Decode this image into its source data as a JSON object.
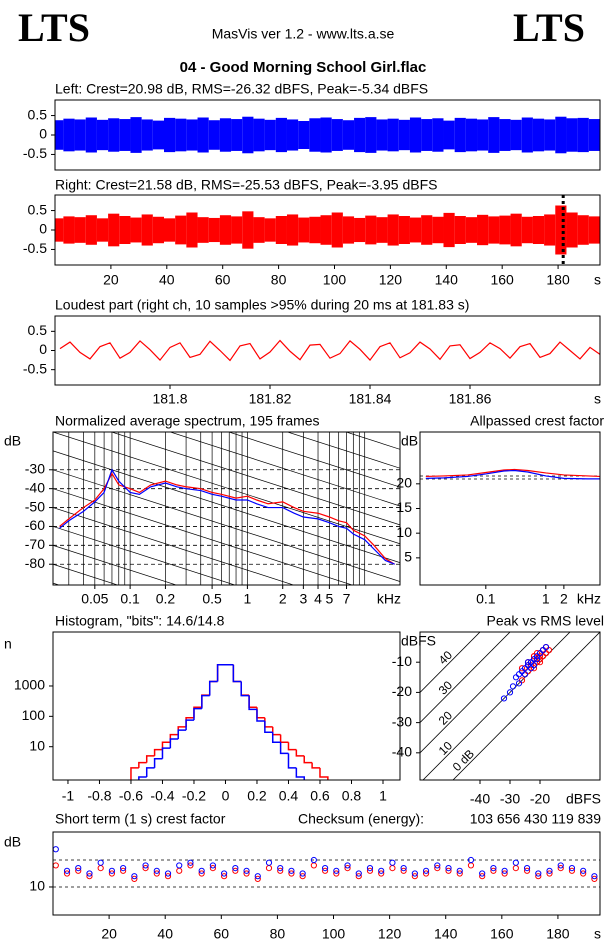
{
  "header": {
    "logo_left": "LTS",
    "logo_right": "LTS",
    "app": "MasVis ver 1.2 - www.lts.a.se",
    "file": "04 - Good Morning School Girl.flac"
  },
  "chart_data": [
    {
      "type": "waveform",
      "title": "Left: Crest=20.98 dB, RMS=-26.32 dBFS, Peak=-5.34 dBFS",
      "color": "#0000ff",
      "x": [
        1,
        5,
        9,
        13,
        17,
        21,
        25,
        29,
        33,
        37,
        41,
        45,
        49,
        53,
        57,
        61,
        65,
        69,
        73,
        77,
        81,
        85,
        89,
        93,
        97,
        101,
        105,
        109,
        113,
        117,
        121,
        125,
        129,
        133,
        137,
        141,
        145,
        149,
        153,
        157,
        161,
        165,
        169,
        173,
        177,
        181,
        185,
        189,
        193
      ],
      "values": [
        0.38,
        0.42,
        0.4,
        0.45,
        0.39,
        0.43,
        0.41,
        0.46,
        0.4,
        0.37,
        0.44,
        0.42,
        0.4,
        0.45,
        0.38,
        0.43,
        0.41,
        0.47,
        0.42,
        0.39,
        0.44,
        0.4,
        0.36,
        0.43,
        0.45,
        0.41,
        0.38,
        0.44,
        0.46,
        0.4,
        0.42,
        0.39,
        0.45,
        0.41,
        0.43,
        0.37,
        0.44,
        0.42,
        0.4,
        0.46,
        0.41,
        0.39,
        0.45,
        0.42,
        0.4,
        0.47,
        0.43,
        0.44,
        0.41
      ],
      "xlim": [
        0,
        195
      ],
      "ylim": [
        -0.9,
        0.9
      ],
      "yticks": [
        0.5,
        0,
        -0.5
      ]
    },
    {
      "type": "waveform",
      "title": "Right: Crest=21.58 dB, RMS=-25.53 dBFS, Peak=-3.95 dBFS",
      "color": "#ff0000",
      "x": [
        1,
        5,
        9,
        13,
        17,
        21,
        25,
        29,
        33,
        37,
        41,
        45,
        49,
        53,
        57,
        61,
        65,
        69,
        73,
        77,
        81,
        85,
        89,
        93,
        97,
        101,
        105,
        109,
        113,
        117,
        121,
        125,
        129,
        133,
        137,
        141,
        145,
        149,
        153,
        157,
        161,
        165,
        169,
        173,
        177,
        181,
        185,
        189,
        193
      ],
      "values": [
        0.3,
        0.35,
        0.33,
        0.38,
        0.3,
        0.42,
        0.36,
        0.32,
        0.4,
        0.34,
        0.3,
        0.37,
        0.45,
        0.33,
        0.31,
        0.38,
        0.35,
        0.48,
        0.33,
        0.3,
        0.36,
        0.4,
        0.32,
        0.34,
        0.38,
        0.45,
        0.35,
        0.31,
        0.37,
        0.33,
        0.4,
        0.36,
        0.32,
        0.38,
        0.34,
        0.44,
        0.36,
        0.33,
        0.39,
        0.35,
        0.37,
        0.42,
        0.34,
        0.36,
        0.4,
        0.63,
        0.45,
        0.38,
        0.35
      ],
      "marker": 181.83,
      "xlim": [
        0,
        195
      ],
      "ylim": [
        -0.9,
        0.9
      ],
      "yticks": [
        0.5,
        0,
        -0.5
      ],
      "xticks": [
        20,
        40,
        60,
        80,
        100,
        120,
        140,
        160,
        180
      ],
      "x_unit": "s"
    },
    {
      "type": "line",
      "title": "Loudest part (right ch, 10 samples >95% during 20 ms at 181.83 s)",
      "color": "#ff0000",
      "x": [
        181.778,
        181.78,
        181.782,
        181.784,
        181.786,
        181.788,
        181.79,
        181.792,
        181.794,
        181.796,
        181.798,
        181.8,
        181.802,
        181.804,
        181.806,
        181.808,
        181.81,
        181.812,
        181.814,
        181.816,
        181.818,
        181.82,
        181.822,
        181.824,
        181.826,
        181.828,
        181.83,
        181.832,
        181.834,
        181.836,
        181.838,
        181.84,
        181.842,
        181.844,
        181.846,
        181.848,
        181.85,
        181.852,
        181.854,
        181.856,
        181.858,
        181.86,
        181.862,
        181.864,
        181.866,
        181.868,
        181.87,
        181.872,
        181.874,
        181.876,
        181.878,
        181.88,
        181.882,
        181.884,
        181.886
      ],
      "values": [
        0.05,
        0.22,
        -0.05,
        -0.22,
        0.1,
        0.2,
        -0.2,
        -0.05,
        0.25,
        0.02,
        -0.25,
        0.08,
        0.2,
        -0.18,
        -0.1,
        0.24,
        0,
        -0.26,
        0.12,
        0.18,
        -0.22,
        -0.04,
        0.26,
        -0.02,
        -0.24,
        0.14,
        0.16,
        -0.2,
        -0.08,
        0.25,
        0.03,
        -0.25,
        0.1,
        0.2,
        -0.19,
        -0.06,
        0.22,
        0.04,
        -0.23,
        0.12,
        0.15,
        -0.21,
        -0.05,
        0.2,
        0.05,
        -0.2,
        0.1,
        0.18,
        -0.18,
        -0.08,
        0.22,
        0,
        -0.22,
        0.08,
        -0.1
      ],
      "xlim": [
        181.777,
        181.886
      ],
      "ylim": [
        -0.9,
        0.9
      ],
      "yticks": [
        0.5,
        0,
        -0.5
      ],
      "xticks": [
        181.8,
        181.82,
        181.84,
        181.86
      ],
      "x_unit": "s"
    },
    {
      "type": "line",
      "title": "Normalized average spectrum, 195 frames",
      "xscale": "log",
      "grid": true,
      "x": [
        0.025,
        0.03,
        0.04,
        0.05,
        0.06,
        0.07,
        0.08,
        0.1,
        0.12,
        0.15,
        0.2,
        0.25,
        0.3,
        0.4,
        0.5,
        0.6,
        0.8,
        1,
        1.2,
        1.5,
        2,
        2.5,
        3,
        4,
        5,
        6,
        7,
        8,
        10,
        12,
        15,
        18
      ],
      "series": [
        {
          "color": "#ff0000",
          "values": [
            -60,
            -56,
            -50,
            -46,
            -40,
            -32,
            -38,
            -40,
            -42,
            -38,
            -36,
            -38,
            -39,
            -40,
            -42,
            -43,
            -45,
            -44,
            -46,
            -48,
            -47,
            -50,
            -52,
            -53,
            -55,
            -57,
            -58,
            -62,
            -65,
            -70,
            -77,
            -80
          ]
        },
        {
          "color": "#0000ff",
          "values": [
            -61,
            -57,
            -52,
            -47,
            -42,
            -30,
            -36,
            -42,
            -43,
            -39,
            -37,
            -39,
            -40,
            -41,
            -43,
            -44,
            -46,
            -46,
            -48,
            -50,
            -50,
            -53,
            -55,
            -56,
            -58,
            -60,
            -61,
            -64,
            -67,
            -72,
            -78,
            -80
          ]
        }
      ],
      "xlim": [
        0.022,
        20
      ],
      "ylim": [
        -91,
        -10
      ],
      "yticks": [
        -30,
        -40,
        -50,
        -60,
        -70,
        -80
      ],
      "xticks": [
        0.05,
        0.1,
        0.2,
        0.5,
        1,
        2,
        3,
        4,
        5,
        7
      ],
      "x_unit": "kHz",
      "y_unit": "dB"
    },
    {
      "type": "line",
      "title": "Allpassed crest factor",
      "xscale": "log",
      "x": [
        0.01,
        0.02,
        0.05,
        0.1,
        0.2,
        0.3,
        0.5,
        1,
        2,
        5,
        8
      ],
      "series": [
        {
          "color": "#ff0000",
          "values": [
            21.5,
            21.6,
            21.8,
            22.3,
            22.8,
            22.9,
            22.7,
            22.2,
            21.8,
            21.6,
            21.5
          ]
        },
        {
          "color": "#0000ff",
          "values": [
            21.1,
            21.2,
            21.5,
            22,
            22.6,
            22.7,
            22.4,
            21.6,
            21.1,
            21,
            21
          ]
        }
      ],
      "ref_lines": [
        20.98,
        21.58
      ],
      "xlim": [
        0.008,
        8
      ],
      "ylim": [
        -0.5,
        30.5
      ],
      "yticks": [
        20,
        15,
        10,
        5
      ],
      "xticks": [
        0.1,
        1,
        2
      ],
      "x_unit": "kHz",
      "y_unit": "dB"
    },
    {
      "type": "histogram",
      "title": "Histogram, \"bits\": 14.6/14.8",
      "yscale": "log",
      "bins": [
        -0.6,
        -0.55,
        -0.5,
        -0.45,
        -0.4,
        -0.35,
        -0.3,
        -0.25,
        -0.2,
        -0.15,
        -0.1,
        -0.05,
        0,
        0.05,
        0.1,
        0.15,
        0.2,
        0.25,
        0.3,
        0.35,
        0.4,
        0.45,
        0.5,
        0.55,
        0.6,
        0.65
      ],
      "series": [
        {
          "color": "#ff0000",
          "values": [
            2,
            3,
            5,
            8,
            14,
            25,
            45,
            90,
            200,
            500,
            1400,
            5000,
            5000,
            1400,
            500,
            200,
            90,
            45,
            25,
            14,
            8,
            5,
            3,
            2,
            1
          ]
        },
        {
          "color": "#0000ff",
          "values": [
            null,
            1,
            2,
            4,
            9,
            18,
            35,
            75,
            180,
            480,
            1400,
            5000,
            5000,
            1400,
            480,
            170,
            70,
            30,
            14,
            6,
            2,
            1,
            null,
            null,
            null
          ]
        }
      ],
      "xlim": [
        -1.095,
        1.108
      ],
      "ylim": [
        0.8,
        60000
      ],
      "yticks": [
        10,
        100,
        1000
      ],
      "xticks": [
        -1,
        -0.8,
        -0.6,
        -0.4,
        -0.2,
        0,
        0.2,
        0.4,
        0.6,
        0.8,
        1
      ],
      "y_unit": "n"
    },
    {
      "type": "scatter",
      "title": "Peak vs RMS level",
      "series": [
        {
          "color": "#ff0000",
          "x": [
            -26,
            -24,
            -22,
            -21,
            -20,
            -19,
            -23,
            -25,
            -18,
            -22,
            -20,
            -24,
            -21,
            -19,
            -17,
            -23,
            -22,
            -20,
            -18,
            -26,
            -21,
            -19,
            -24,
            -22,
            -20
          ],
          "values": [
            -12,
            -10,
            -8,
            -9,
            -7,
            -6,
            -11,
            -14,
            -5,
            -9,
            -8,
            -13,
            -7,
            -8,
            -6,
            -10,
            -12,
            -9,
            -7,
            -16,
            -10,
            -6,
            -11,
            -8,
            -10
          ]
        },
        {
          "color": "#0000ff",
          "x": [
            -30,
            -28,
            -25,
            -23,
            -21,
            -27,
            -24,
            -20,
            -22,
            -26,
            -19,
            -29,
            -23,
            -25,
            -21,
            -18,
            -27,
            -22,
            -24,
            -32
          ],
          "values": [
            -20,
            -15,
            -12,
            -10,
            -8,
            -17,
            -11,
            -7,
            -9,
            -13,
            -6,
            -18,
            -12,
            -14,
            -9,
            -5,
            -14,
            -11,
            -10,
            -22
          ]
        }
      ],
      "crest_lines": [
        40,
        30,
        20,
        10,
        {
          "value": 0,
          "label": "0 dB"
        }
      ],
      "xlim": [
        -60,
        0
      ],
      "ylim": [
        -49,
        0
      ],
      "yticks": [
        -10,
        -20,
        -30,
        -40
      ],
      "xticks": [
        -40,
        -30,
        -20
      ],
      "x_unit": "dBFS",
      "y_unit": "dBFS"
    },
    {
      "type": "scatter",
      "title": "Short term (1 s) crest factor",
      "annotation": "Checksum (energy):",
      "checksum": "103 656 430 119 839",
      "x": [
        1,
        5,
        9,
        13,
        17,
        21,
        25,
        29,
        33,
        37,
        41,
        45,
        49,
        53,
        57,
        61,
        65,
        69,
        73,
        77,
        81,
        85,
        89,
        93,
        97,
        101,
        105,
        109,
        113,
        117,
        121,
        125,
        129,
        133,
        137,
        141,
        145,
        149,
        153,
        157,
        161,
        165,
        169,
        173,
        177,
        181,
        185,
        189,
        193
      ],
      "series": [
        {
          "color": "#ff0000",
          "values": [
            18,
            15,
            16,
            14,
            17,
            15,
            16,
            13,
            17,
            15,
            14,
            16,
            18,
            15,
            17,
            14,
            16,
            15,
            13,
            17,
            16,
            15,
            14,
            18,
            16,
            15,
            17,
            14,
            16,
            15,
            17,
            16,
            14,
            15,
            17,
            16,
            15,
            18,
            14,
            16,
            15,
            17,
            16,
            14,
            15,
            17,
            16,
            15,
            13
          ]
        },
        {
          "color": "#0000ff",
          "values": [
            24,
            16,
            17,
            15,
            19,
            16,
            17,
            14,
            18,
            16,
            15,
            18,
            19,
            16,
            18,
            15,
            17,
            16,
            14,
            19,
            17,
            16,
            15,
            20,
            17,
            16,
            18,
            15,
            17,
            16,
            19,
            17,
            15,
            16,
            18,
            17,
            16,
            20,
            15,
            17,
            16,
            19,
            17,
            15,
            16,
            18,
            17,
            16,
            14
          ]
        }
      ],
      "hlines": [
        10,
        20
      ],
      "xlim": [
        0,
        195
      ],
      "ylim": [
        -0.4,
        30.4
      ],
      "yticks": [
        10
      ],
      "xticks": [
        20,
        40,
        60,
        80,
        100,
        120,
        140,
        160,
        180
      ],
      "x_unit": "s",
      "y_unit": "dB"
    }
  ]
}
